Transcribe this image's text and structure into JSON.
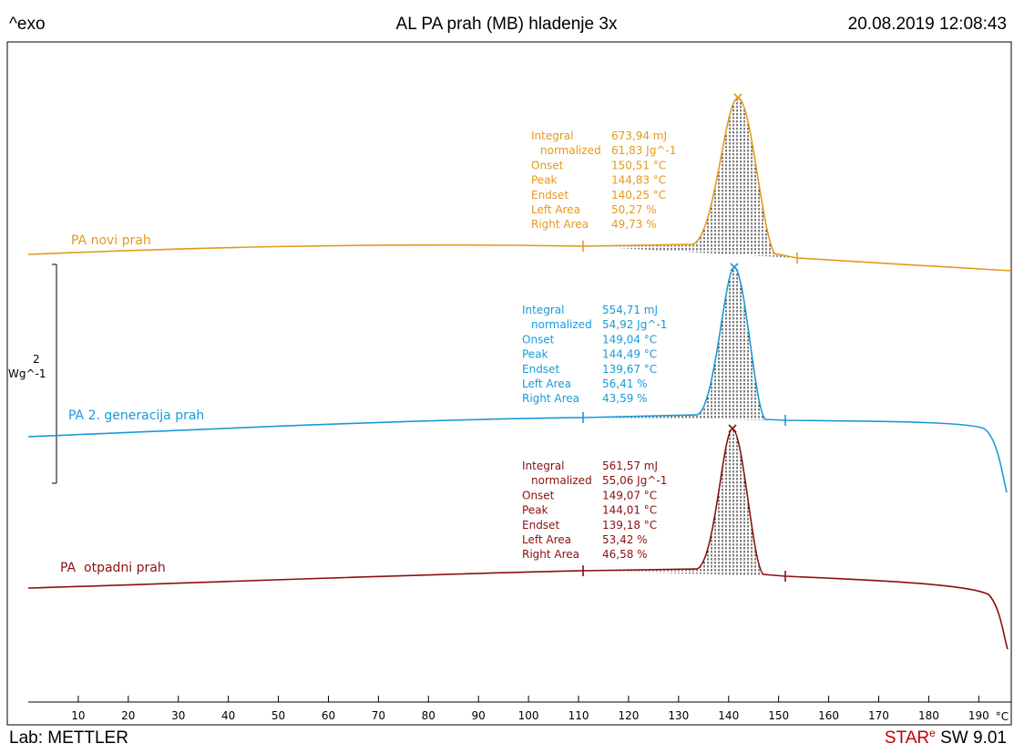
{
  "header": {
    "left": "^exo",
    "title": "AL PA prah (MB) hladenje 3x",
    "date": "20.08.2019 12:08:43"
  },
  "scale": {
    "value": "2",
    "unit": "Wg^-1"
  },
  "axis": {
    "xlim": [
      0,
      196.5
    ],
    "xticks": [
      10,
      20,
      30,
      40,
      50,
      60,
      70,
      80,
      90,
      100,
      110,
      120,
      130,
      140,
      150,
      160,
      170,
      180,
      190
    ],
    "unit": "°C"
  },
  "curves": [
    {
      "name": "PA novi prah",
      "color": "#e39a1c",
      "results": [
        [
          "Integral",
          "673,94 mJ"
        ],
        [
          "normalized",
          "61,83 Jg^-1"
        ],
        [
          "Onset",
          "150,51 °C"
        ],
        [
          "Peak",
          "144,83 °C"
        ],
        [
          "Endset",
          "140,25 °C"
        ],
        [
          "Left Area",
          "50,27 %"
        ],
        [
          "Right Area",
          "49,73 %"
        ]
      ]
    },
    {
      "name": "PA 2. generacija prah",
      "color": "#1a9ad6",
      "results": [
        [
          "Integral",
          "554,71 mJ"
        ],
        [
          "normalized",
          "54,92 Jg^-1"
        ],
        [
          "Onset",
          "149,04 °C"
        ],
        [
          "Peak",
          "144,49 °C"
        ],
        [
          "Endset",
          "139,67 °C"
        ],
        [
          "Left Area",
          "56,41 %"
        ],
        [
          "Right Area",
          "43,59 %"
        ]
      ]
    },
    {
      "name": "PA  otpadni prah",
      "color": "#8b1010",
      "results": [
        [
          "Integral",
          "561,57 mJ"
        ],
        [
          "normalized",
          "55,06 Jg^-1"
        ],
        [
          "Onset",
          "149,07 °C"
        ],
        [
          "Peak",
          "144,01 °C"
        ],
        [
          "Endset",
          "139,18 °C"
        ],
        [
          "Left Area",
          "53,42 %"
        ],
        [
          "Right Area",
          "46,58 %"
        ]
      ]
    }
  ],
  "footer": {
    "left": "Lab: METTLER",
    "star": "STAR",
    "e": "e",
    "version": " SW 9.01"
  }
}
